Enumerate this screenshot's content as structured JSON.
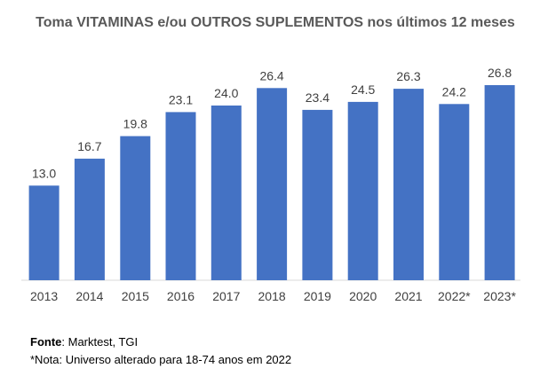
{
  "chart_data": {
    "type": "bar",
    "title": "Toma VITAMINAS e/ou OUTROS SUPLEMENTOS nos últimos 12 meses",
    "categories": [
      "2013",
      "2014",
      "2015",
      "2016",
      "2017",
      "2018",
      "2019",
      "2020",
      "2021",
      "2022*",
      "2023*"
    ],
    "values": [
      13.0,
      16.7,
      19.8,
      23.1,
      24.0,
      26.4,
      23.4,
      24.5,
      26.3,
      24.2,
      26.8
    ],
    "value_labels": [
      "13.0",
      "16.7",
      "19.8",
      "23.1",
      "24.0",
      "26.4",
      "23.4",
      "24.5",
      "26.3",
      "24.2",
      "26.8"
    ],
    "xlabel": "",
    "ylabel": "",
    "ylim": [
      0,
      28
    ],
    "grid": false,
    "bar_color": "#4472C4"
  },
  "footer": {
    "source_label": "Fonte",
    "source_text": ": Marktest, TGI",
    "note": "*Nota: Universo alterado para 18-74 anos em 2022"
  }
}
